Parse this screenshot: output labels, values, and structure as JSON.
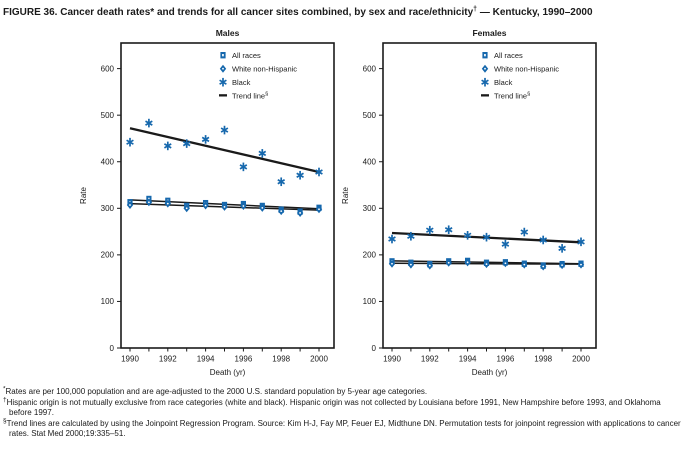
{
  "figure_title": {
    "part1": "FIGURE 36. Cancer death rates* and trends for all cancer sites combined, by sex and race/ethnicity",
    "sup": "†",
    "part2": " — Kentucky, 1990–2000"
  },
  "colors": {
    "marker_blue": "#1668ad",
    "line_black": "#1a1a1a"
  },
  "legend": {
    "trend_label": "Trend line",
    "trend_sup": "§"
  },
  "chart_data": [
    {
      "type": "scatter",
      "title": "Males",
      "xlabel": "Death (yr)",
      "ylabel": "Rate",
      "x": [
        1990,
        1991,
        1992,
        1993,
        1994,
        1995,
        1996,
        1997,
        1998,
        1999,
        2000
      ],
      "xtick_labels": [
        1990,
        1992,
        1994,
        1996,
        1998,
        2000
      ],
      "yticks": [
        0,
        100,
        200,
        300,
        400,
        500,
        600
      ],
      "ylim": [
        0,
        655
      ],
      "grid": false,
      "legend_position": "upper-right-inside",
      "series": [
        {
          "name": "All races",
          "marker": "square",
          "values": [
            313,
            320,
            316,
            305,
            311,
            307,
            309,
            305,
            297,
            293,
            301
          ]
        },
        {
          "name": "White non-Hispanic",
          "marker": "diamond",
          "values": [
            307,
            313,
            310,
            300,
            306,
            303,
            305,
            301,
            294,
            290,
            298
          ]
        },
        {
          "name": "Black",
          "marker": "asterisk",
          "values": [
            442,
            483,
            434,
            439,
            448,
            468,
            389,
            418,
            357,
            371,
            378
          ]
        }
      ],
      "trend_lines": [
        {
          "name": "All races",
          "x_start": 1990,
          "value_start": 318,
          "x_end": 2000,
          "value_end": 299
        },
        {
          "name": "White non-Hispanic",
          "x_start": 1990,
          "value_start": 310,
          "x_end": 2000,
          "value_end": 296
        },
        {
          "name": "Black",
          "x_start": 1990,
          "value_start": 472,
          "x_end": 2000,
          "value_end": 378
        }
      ]
    },
    {
      "type": "scatter",
      "title": "Females",
      "xlabel": "Death (yr)",
      "ylabel": "Rate",
      "x": [
        1990,
        1991,
        1992,
        1993,
        1994,
        1995,
        1996,
        1997,
        1998,
        1999,
        2000
      ],
      "xtick_labels": [
        1990,
        1992,
        1994,
        1996,
        1998,
        2000
      ],
      "yticks": [
        0,
        100,
        200,
        300,
        400,
        500,
        600
      ],
      "ylim": [
        0,
        655
      ],
      "grid": false,
      "legend_position": "upper-right-inside",
      "series": [
        {
          "name": "All races",
          "marker": "square",
          "values": [
            186,
            183,
            180,
            186,
            187,
            183,
            184,
            181,
            177,
            180,
            181
          ]
        },
        {
          "name": "White non-Hispanic",
          "marker": "diamond",
          "values": [
            181,
            179,
            177,
            183,
            184,
            180,
            182,
            179,
            175,
            178,
            179
          ]
        },
        {
          "name": "Black",
          "marker": "asterisk",
          "values": [
            234,
            240,
            253,
            254,
            242,
            238,
            223,
            249,
            232,
            214,
            228
          ]
        }
      ],
      "trend_lines": [
        {
          "name": "All races",
          "x_start": 1990,
          "value_start": 187,
          "x_end": 2000,
          "value_end": 181
        },
        {
          "name": "White non-Hispanic",
          "x_start": 1990,
          "value_start": 182,
          "x_end": 2000,
          "value_end": 180
        },
        {
          "name": "Black",
          "x_start": 1990,
          "value_start": 247,
          "x_end": 2000,
          "value_end": 227
        }
      ]
    }
  ],
  "footnotes": [
    {
      "marker": "*",
      "text": "Rates are per 100,000 population and are age-adjusted to the 2000 U.S. standard population by 5-year age categories."
    },
    {
      "marker": "†",
      "text": "Hispanic origin is not mutually exclusive from race categories (white and black). Hispanic origin was not collected by Louisiana before 1991, New Hampshire before 1993, and Oklahoma before 1997."
    },
    {
      "marker": "§",
      "text": "Trend lines are calculated by using the Joinpoint Regression Program. Source: Kim H-J, Fay MP, Feuer EJ, Midthune DN. Permutation tests for joinpoint regression with applications to cancer rates. Stat Med 2000;19:335–51."
    }
  ]
}
